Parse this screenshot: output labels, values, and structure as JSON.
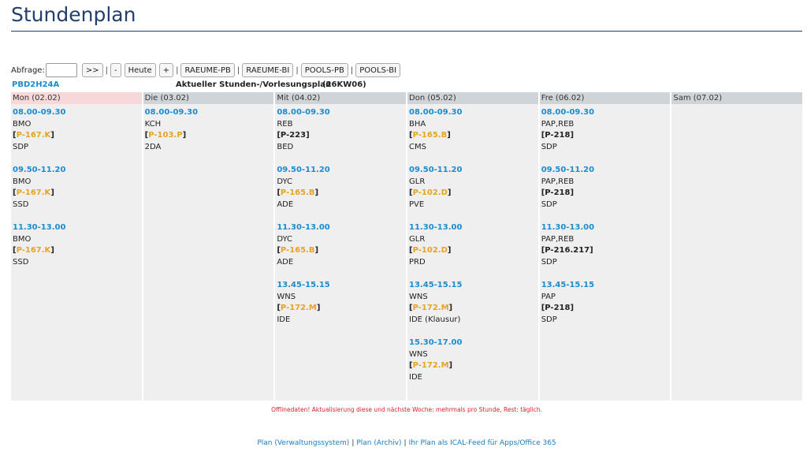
{
  "page": {
    "title": "Stundenplan"
  },
  "toolbar": {
    "query_label": "Abfrage:",
    "query_value": "",
    "next_label": ">>",
    "minus_label": "-",
    "today_label": "Heute",
    "plus_label": "+",
    "separator": "|",
    "rooms": [
      "RAEUME-PB",
      "RAEUME-BI",
      "POOLS-PB",
      "POOLS-BI"
    ]
  },
  "info": {
    "class_code": "PBD2H24A",
    "heading": "Aktueller Stunden-/Vorlesungsplan",
    "week": "(26KW06)"
  },
  "days": [
    {
      "label": "Mon (02.02)",
      "today": true,
      "lessons": [
        {
          "time": "08.00-09.30",
          "teacher": "BMO",
          "room_open": "[",
          "room": "P-167.K",
          "room_close": "]",
          "room_highlight": true,
          "subject": "SDP"
        },
        {
          "time": "09.50-11.20",
          "teacher": "BMO",
          "room_open": "[",
          "room": "P-167.K",
          "room_close": "]",
          "room_highlight": true,
          "subject": "SSD"
        },
        {
          "time": "11.30-13.00",
          "teacher": "BMO",
          "room_open": "[",
          "room": "P-167.K",
          "room_close": "]",
          "room_highlight": true,
          "subject": "SSD"
        }
      ]
    },
    {
      "label": "Die (03.02)",
      "today": false,
      "lessons": [
        {
          "time": "08.00-09.30",
          "teacher": "KCH",
          "room_open": "[",
          "room": "P-103.P",
          "room_close": "]",
          "room_highlight": true,
          "subject": "2DA"
        }
      ]
    },
    {
      "label": "Mit (04.02)",
      "today": false,
      "lessons": [
        {
          "time": "08.00-09.30",
          "teacher": "REB",
          "room_open": "[",
          "room": "P-223",
          "room_close": "]",
          "room_highlight": false,
          "subject": "BED"
        },
        {
          "time": "09.50-11.20",
          "teacher": "DYC",
          "room_open": "[",
          "room": "P-165.B",
          "room_close": "]",
          "room_highlight": true,
          "subject": "ADE"
        },
        {
          "time": "11.30-13.00",
          "teacher": "DYC",
          "room_open": "[",
          "room": "P-165.B",
          "room_close": "]",
          "room_highlight": true,
          "subject": "ADE"
        },
        {
          "time": "13.45-15.15",
          "teacher": "WNS",
          "room_open": "[",
          "room": "P-172.M",
          "room_close": "]",
          "room_highlight": true,
          "subject": "IDE"
        }
      ]
    },
    {
      "label": "Don (05.02)",
      "today": false,
      "lessons": [
        {
          "time": "08.00-09.30",
          "teacher": "BHA",
          "room_open": "[",
          "room": "P-165.B",
          "room_close": "]",
          "room_highlight": true,
          "subject": "CMS"
        },
        {
          "time": "09.50-11.20",
          "teacher": "GLR",
          "room_open": "[",
          "room": "P-102.D",
          "room_close": "]",
          "room_highlight": true,
          "subject": "PVE"
        },
        {
          "time": "11.30-13.00",
          "teacher": "GLR",
          "room_open": "[",
          "room": "P-102.D",
          "room_close": "]",
          "room_highlight": true,
          "subject": "PRD"
        },
        {
          "time": "13.45-15.15",
          "teacher": "WNS",
          "room_open": "[",
          "room": "P-172.M",
          "room_close": "]",
          "room_highlight": true,
          "subject": "IDE (Klausur)"
        },
        {
          "time": "15.30-17.00",
          "teacher": "WNS",
          "room_open": "[",
          "room": "P-172.M",
          "room_close": "]",
          "room_highlight": true,
          "subject": "IDE"
        }
      ]
    },
    {
      "label": "Fre (06.02)",
      "today": false,
      "lessons": [
        {
          "time": "08.00-09.30",
          "teacher": "PAP,REB",
          "room_open": "[",
          "room": "P-218",
          "room_close": "]",
          "room_highlight": false,
          "subject": "SDP"
        },
        {
          "time": "09.50-11.20",
          "teacher": "PAP,REB",
          "room_open": "[",
          "room": "P-218",
          "room_close": "]",
          "room_highlight": false,
          "subject": "SDP"
        },
        {
          "time": "11.30-13.00",
          "teacher": "PAP,REB",
          "room_open": "[",
          "room": "P-216.217",
          "room_close": "]",
          "room_highlight": false,
          "subject": "SDP"
        },
        {
          "time": "13.45-15.15",
          "teacher": "PAP",
          "room_open": "[",
          "room": "P-218",
          "room_close": "]",
          "room_highlight": false,
          "subject": "SDP"
        }
      ]
    },
    {
      "label": "Sam (07.02)",
      "today": false,
      "lessons": []
    }
  ],
  "notice": "Offlinedaten! Aktualisierung diese und nächste Woche: mehrmals pro Stunde, Rest: täglich.",
  "footer": {
    "links": [
      "Plan (Verwaltungssystem)",
      "Plan (Archiv)",
      "Ihr Plan als ICAL-Feed für Apps/Office 365"
    ],
    "separator": "|"
  },
  "colors": {
    "accent_blue": "#1a8ccf",
    "room_orange": "#e8a224",
    "title_navy": "#23406b",
    "notice_red": "#e0202a",
    "today_pink": "#f6d8d8"
  }
}
